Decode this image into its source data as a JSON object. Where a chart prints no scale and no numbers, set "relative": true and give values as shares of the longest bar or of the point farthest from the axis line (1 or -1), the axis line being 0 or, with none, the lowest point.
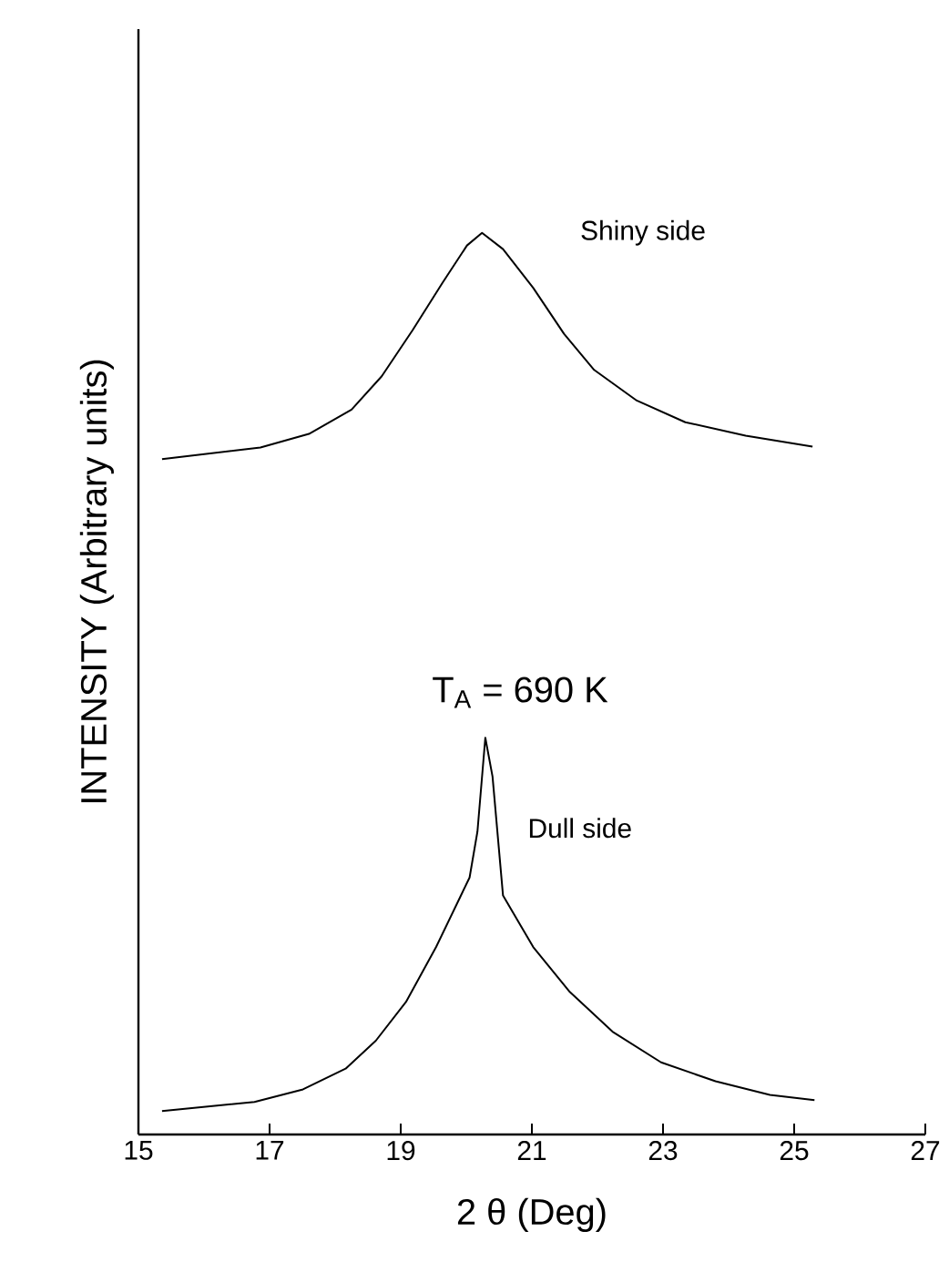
{
  "chart_data": {
    "type": "line",
    "relative": true,
    "xlabel": "2 θ  (Deg)",
    "ylabel": "INTENSITY  (Arbitrary units)",
    "annotations": [
      "T$_{A}$ = 690 K"
    ],
    "xlim": [
      15,
      27
    ],
    "xticks": [
      15,
      17,
      19,
      21,
      23,
      25,
      27
    ],
    "tick_labels": "x",
    "grid": false,
    "legend": false,
    "marker": "none",
    "line_style": "solid",
    "series": [
      {
        "name": "Shiny side",
        "color": "#000000",
        "x": [
          15.36,
          16.86,
          17.6,
          18.25,
          18.71,
          19.18,
          19.64,
          20.01,
          20.24,
          20.56,
          21.02,
          21.49,
          21.95,
          22.6,
          23.34,
          24.26,
          25.28
        ],
        "values": [
          0.749,
          0.762,
          0.777,
          0.804,
          0.841,
          0.892,
          0.945,
          0.986,
          1.0,
          0.982,
          0.939,
          0.888,
          0.848,
          0.814,
          0.79,
          0.775,
          0.763
        ]
      },
      {
        "name": "Dull side",
        "color": "#000000",
        "x": [
          15.36,
          16.77,
          17.51,
          18.16,
          18.62,
          19.08,
          19.54,
          20.05,
          20.17,
          20.29,
          20.4,
          20.56,
          21.02,
          21.58,
          22.23,
          22.97,
          23.8,
          24.63,
          25.31
        ],
        "values": [
          0.026,
          0.036,
          0.05,
          0.073,
          0.104,
          0.147,
          0.208,
          0.285,
          0.336,
          0.44,
          0.397,
          0.265,
          0.208,
          0.158,
          0.114,
          0.08,
          0.059,
          0.044,
          0.038
        ]
      }
    ]
  }
}
